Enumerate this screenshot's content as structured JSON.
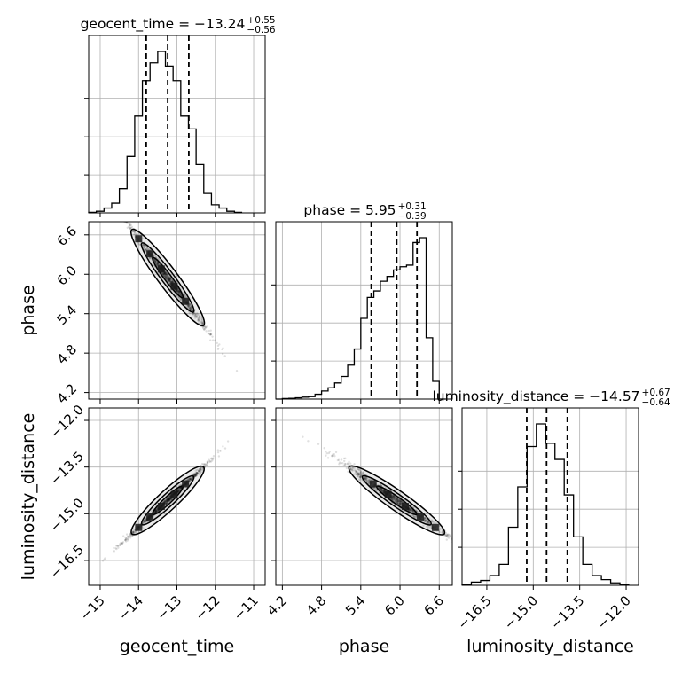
{
  "chart_data": {
    "type": "corner",
    "parameters": [
      "geocent_time",
      "phase",
      "luminosity_distance"
    ],
    "axis_labels": {
      "x": [
        "geocent_time",
        "phase",
        "luminosity_distance"
      ],
      "y": [
        "phase",
        "luminosity_distance"
      ]
    },
    "grid": true,
    "ranges": {
      "geocent_time": [
        -15.3,
        -10.7
      ],
      "phase": [
        4.1,
        6.8
      ],
      "luminosity_distance": [
        -17.3,
        -11.6
      ]
    },
    "ticks": {
      "geocent_time": [
        -15,
        -14,
        -13,
        -12,
        -11
      ],
      "phase": [
        4.2,
        4.8,
        5.4,
        6.0,
        6.6
      ],
      "luminosity_distance": [
        -16.5,
        -15.0,
        -13.5,
        -12.0
      ]
    },
    "tick_labels": {
      "geocent_time": [
        "−15",
        "−14",
        "−13",
        "−12",
        "−11"
      ],
      "phase": [
        "4.2",
        "4.8",
        "5.4",
        "6.0",
        "6.6"
      ],
      "luminosity_distance": [
        "−16.5",
        "−15.0",
        "−13.5",
        "−12.0"
      ]
    },
    "titles": [
      {
        "parameter": "geocent_time",
        "text": "geocent_time = −13.24",
        "plus": "+0.55",
        "minus": "−0.56"
      },
      {
        "parameter": "phase",
        "text": "phase = 5.95",
        "plus": "+0.31",
        "minus": "−0.39"
      },
      {
        "parameter": "luminosity_distance",
        "text": "luminosity_distance = −14.57",
        "plus": "+0.67",
        "minus": "−0.64"
      }
    ],
    "quantiles": {
      "geocent_time": [
        -13.8,
        -13.24,
        -12.69
      ],
      "phase": [
        5.56,
        5.95,
        6.26
      ],
      "luminosity_distance": [
        -15.21,
        -14.57,
        -13.9
      ]
    },
    "histograms": {
      "geocent_time": {
        "edges": [
          -15.3,
          -15.1,
          -14.9,
          -14.7,
          -14.5,
          -14.3,
          -14.1,
          -13.9,
          -13.7,
          -13.5,
          -13.3,
          -13.1,
          -12.9,
          -12.7,
          -12.5,
          -12.3,
          -12.1,
          -11.9,
          -11.7,
          -11.5,
          -11.3
        ],
        "counts": [
          0.003,
          0.01,
          0.03,
          0.06,
          0.15,
          0.35,
          0.6,
          0.82,
          0.93,
          1.0,
          0.91,
          0.82,
          0.6,
          0.52,
          0.3,
          0.12,
          0.05,
          0.03,
          0.01,
          0.003
        ]
      },
      "phase": {
        "edges": [
          4.1,
          4.2,
          4.3,
          4.4,
          4.5,
          4.6,
          4.7,
          4.8,
          4.9,
          5.0,
          5.1,
          5.2,
          5.3,
          5.4,
          5.5,
          5.6,
          5.7,
          5.8,
          5.9,
          6.0,
          6.1,
          6.2,
          6.3,
          6.4,
          6.5,
          6.6,
          6.7
        ],
        "counts": [
          0,
          0.003,
          0.005,
          0.008,
          0.012,
          0.015,
          0.03,
          0.05,
          0.07,
          0.1,
          0.14,
          0.21,
          0.31,
          0.5,
          0.63,
          0.67,
          0.73,
          0.76,
          0.8,
          0.82,
          0.83,
          0.97,
          1.0,
          0.38,
          0.11,
          0.0
        ]
      },
      "luminosity_distance": {
        "edges": [
          -17.3,
          -17.0,
          -16.7,
          -16.4,
          -16.1,
          -15.8,
          -15.5,
          -15.2,
          -14.9,
          -14.6,
          -14.3,
          -14.0,
          -13.7,
          -13.4,
          -13.1,
          -12.8,
          -12.5,
          -12.2,
          -11.9
        ],
        "counts": [
          0.005,
          0.02,
          0.03,
          0.06,
          0.13,
          0.36,
          0.61,
          0.86,
          1.0,
          0.88,
          0.78,
          0.56,
          0.3,
          0.13,
          0.06,
          0.035,
          0.015,
          0.005
        ]
      }
    },
    "correlations": {
      "phase_vs_geocent_time": "negative",
      "luminosity_distance_vs_geocent_time": "positive",
      "luminosity_distance_vs_phase": "negative"
    }
  }
}
